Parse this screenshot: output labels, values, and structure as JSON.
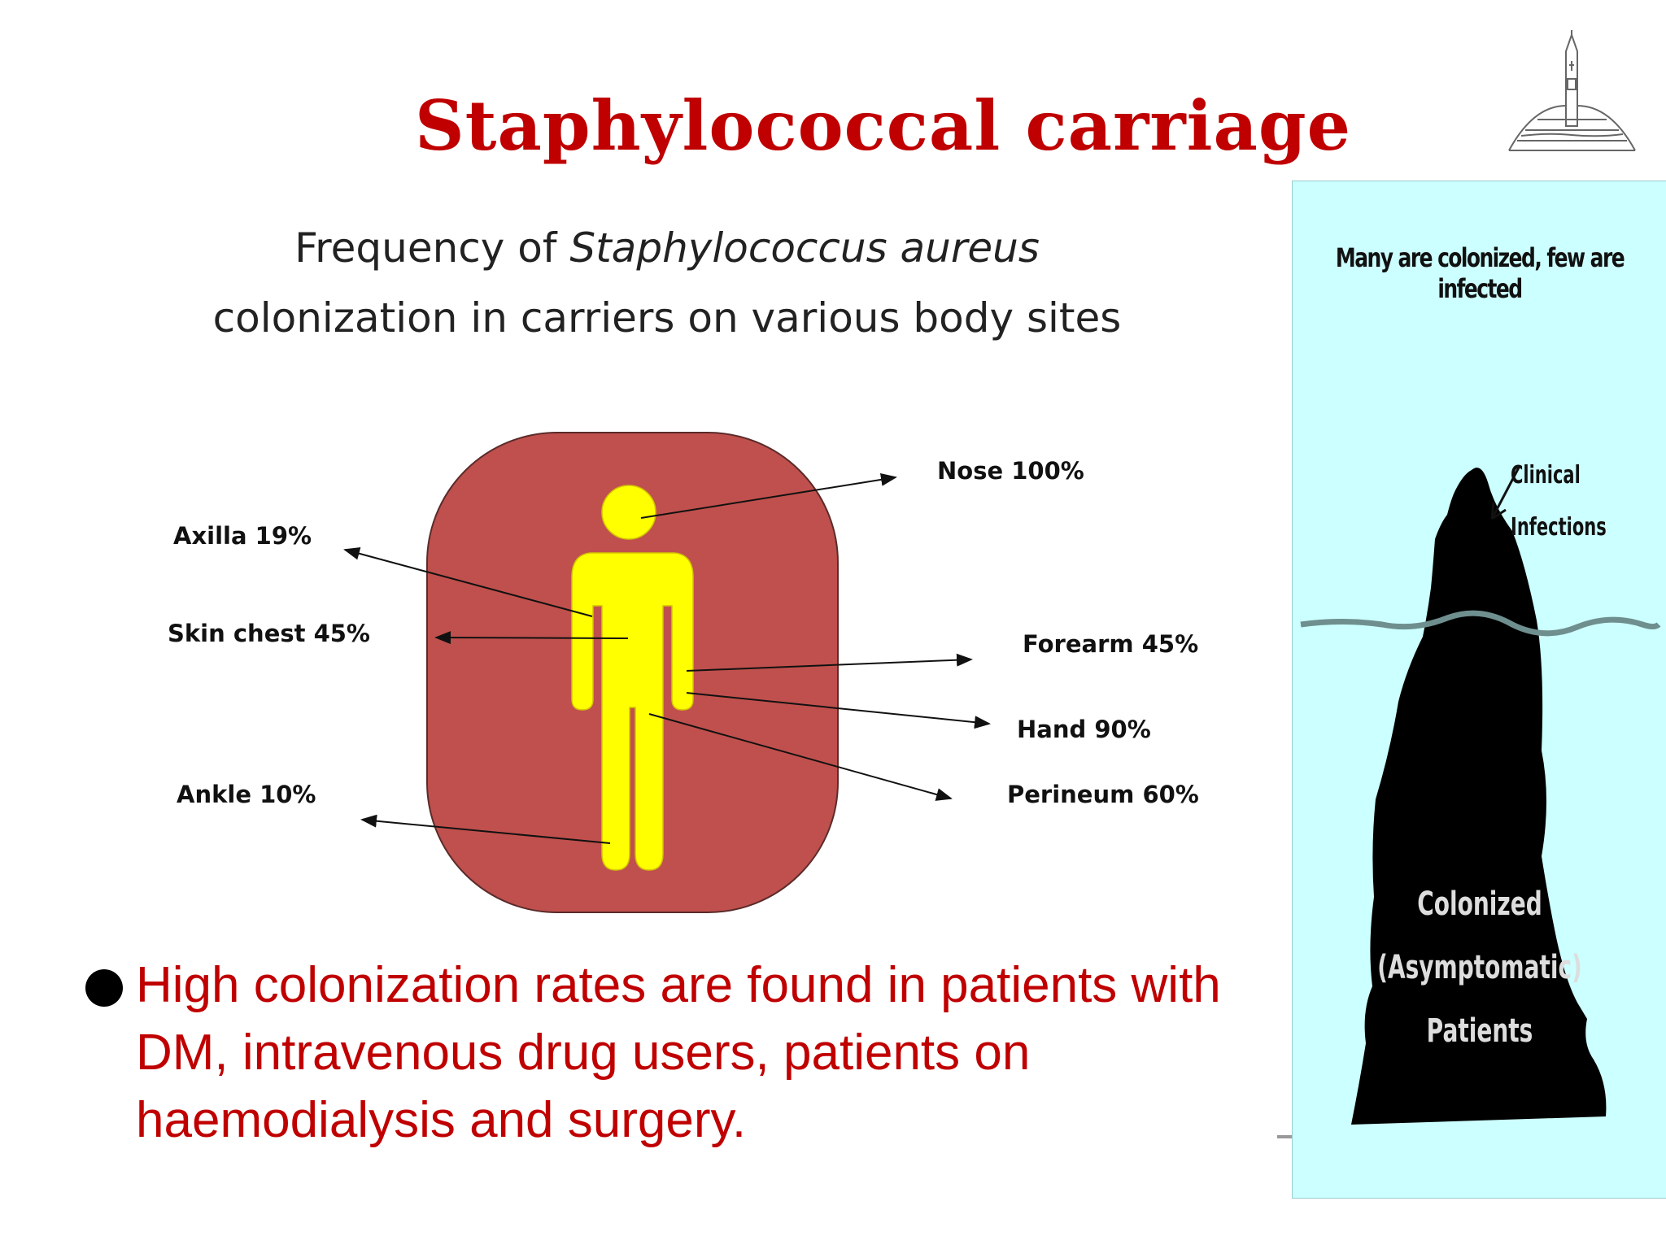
{
  "slide": {
    "title": "Staphylococcal carriage"
  },
  "figure": {
    "title_prefix": "Frequency of ",
    "title_species": "Staphylococcus aureus",
    "title_line2": "colonization in carriers on various body sites",
    "sites": {
      "nose": "Nose 100%",
      "axilla": "Axilla 19%",
      "skin_chest": "Skin chest 45%",
      "forearm": "Forearm 45%",
      "hand": "Hand 90%",
      "ankle": "Ankle 10%",
      "perineum": "Perineum 60%"
    },
    "colors": {
      "panel": "#c0504d",
      "figure": "#ffff00"
    }
  },
  "bullet": {
    "text": "High colonization rates are found in patients with DM, intravenous drug users, patients on haemodialysis and surgery."
  },
  "iceberg": {
    "caption": "Many are colonized, few are infected",
    "clinical_line1": "Clinical",
    "clinical_line2": "Infections",
    "colonized_line1": "Colonized",
    "colonized_line2": "(Asymptomatic)",
    "colonized_line3": "Patients",
    "background": "#ccffff"
  },
  "logo": {
    "icon": "university-seal-icon"
  }
}
